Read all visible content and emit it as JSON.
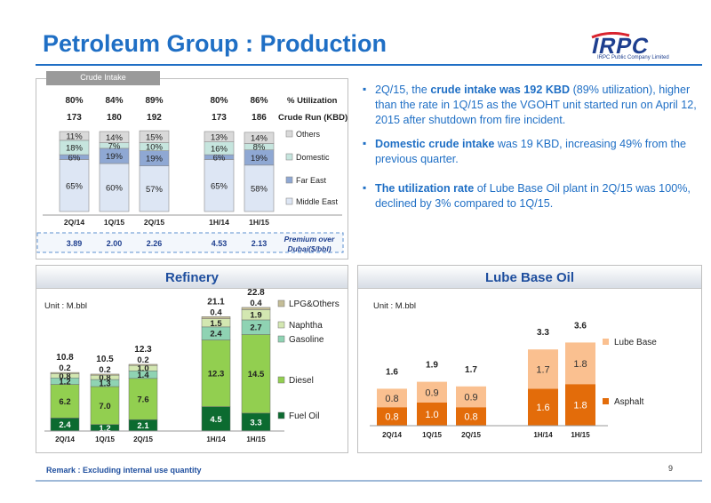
{
  "header": {
    "title": "Petroleum Group : Production",
    "logo_text": "IRPC",
    "logo_subtext": "IRPC Public Company Limited"
  },
  "colors": {
    "accent": "#1f6fc5",
    "others": "#d9d9d9",
    "domestic": "#c6e5de",
    "far_east": "#8fa8d3",
    "middle_east": "#dde6f4",
    "lpg": "#c4bd97",
    "naphtha": "#d3e7b1",
    "gasoline": "#8fd3b3",
    "diesel": "#92cf50",
    "fuel_oil": "#0c6b30",
    "lube_base": "#fac090",
    "asphalt": "#e36c0a"
  },
  "chart_data": [
    {
      "type": "bar",
      "stacked": true,
      "percent": true,
      "title": "Crude Intake",
      "categories": [
        "2Q/14",
        "1Q/15",
        "2Q/15",
        "1H/14",
        "1H/15"
      ],
      "series": [
        {
          "name": "Middle East",
          "values": [
            65,
            60,
            57,
            65,
            58
          ]
        },
        {
          "name": "Far East",
          "values": [
            6,
            19,
            19,
            6,
            19
          ]
        },
        {
          "name": "Domestic",
          "values": [
            18,
            7,
            10,
            16,
            8
          ]
        },
        {
          "name": "Others",
          "values": [
            11,
            14,
            15,
            13,
            14
          ]
        }
      ],
      "utilization": {
        "label": "% Utilization",
        "values": [
          "80%",
          "84%",
          "89%",
          "80%",
          "86%"
        ]
      },
      "crude_run": {
        "label": "Crude Run (KBD)",
        "values": [
          173,
          180,
          192,
          173,
          186
        ]
      },
      "premium": {
        "label_line1": "Premium over",
        "label_line2": "Dubai($/bbl)",
        "values": [
          "3.89",
          "2.00",
          "2.26",
          "4.53",
          "2.13"
        ]
      }
    },
    {
      "type": "bar",
      "stacked": true,
      "title": "Refinery",
      "unit": "Unit : M.bbl",
      "categories": [
        "2Q/14",
        "1Q/15",
        "2Q/15",
        "1H/14",
        "1H/15"
      ],
      "series": [
        {
          "name": "Fuel Oil",
          "values": [
            2.4,
            1.2,
            2.1,
            4.5,
            3.3
          ]
        },
        {
          "name": "Diesel",
          "values": [
            6.2,
            7.0,
            7.6,
            12.3,
            14.5
          ]
        },
        {
          "name": "Gasoline",
          "values": [
            1.2,
            1.3,
            1.4,
            2.4,
            2.7
          ]
        },
        {
          "name": "Naphtha",
          "values": [
            0.8,
            0.8,
            1.0,
            1.5,
            1.9
          ]
        },
        {
          "name": "LPG&Others",
          "values": [
            0.2,
            0.2,
            0.2,
            0.4,
            0.4
          ]
        }
      ],
      "totals": [
        "10.8",
        "10.5",
        "12.3",
        "21.1",
        "22.8"
      ]
    },
    {
      "type": "bar",
      "stacked": true,
      "title": "Lube Base Oil",
      "unit": "Unit : M.bbl",
      "categories": [
        "2Q/14",
        "1Q/15",
        "2Q/15",
        "1H/14",
        "1H/15"
      ],
      "series": [
        {
          "name": "Asphalt",
          "values": [
            0.8,
            1.0,
            0.8,
            1.6,
            1.8
          ]
        },
        {
          "name": "Lube Base",
          "values": [
            0.8,
            0.9,
            0.9,
            1.7,
            1.8
          ]
        }
      ],
      "totals": [
        "1.6",
        "1.9",
        "1.7",
        "3.3",
        "3.6"
      ]
    }
  ],
  "bullets": [
    {
      "pre": "2Q/15, the ",
      "bold": "crude intake was 192 KBD",
      "post": " (89% utilization), higher than the rate in 1Q/15 as the VGOHT unit started run on April 12, 2015 after shutdown from fire incident."
    },
    {
      "pre": "",
      "bold": "Domestic crude intake",
      "post": " was 19 KBD, increasing 49% from the previous quarter."
    },
    {
      "pre": "",
      "bold": "The utilization rate",
      "post": " of Lube Base Oil plant in 2Q/15 was 100%, declined by 3% compared to 1Q/15."
    }
  ],
  "footer": {
    "remark": "Remark : Excluding internal use quantity",
    "page": "9"
  }
}
